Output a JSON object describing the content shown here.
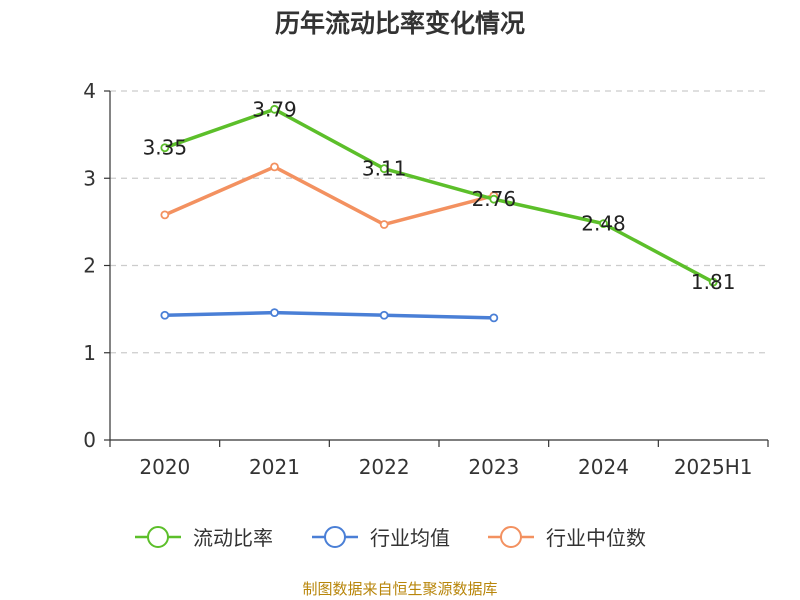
{
  "title": "历年流动比率变化情况",
  "footer": "制图数据来自恒生聚源数据库",
  "chart_data": {
    "type": "line",
    "title": "历年流动比率变化情况",
    "categories": [
      "2020",
      "2021",
      "2022",
      "2023",
      "2024",
      "2025H1"
    ],
    "ylim": [
      0,
      4
    ],
    "yticks": [
      0,
      1,
      2,
      3,
      4
    ],
    "grid": true,
    "legend_position": "bottom",
    "series": [
      {
        "name": "流动比率",
        "color": "#5cbf2a",
        "values": [
          3.35,
          3.79,
          3.11,
          2.76,
          2.48,
          1.81
        ],
        "labels": [
          "3.35",
          "3.79",
          "3.11",
          "2.76",
          "2.48",
          "1.81"
        ]
      },
      {
        "name": "行业均值",
        "color": "#4a7fd6",
        "values": [
          1.43,
          1.46,
          1.43,
          1.4,
          null,
          null
        ]
      },
      {
        "name": "行业中位数",
        "color": "#f39160",
        "values": [
          2.58,
          3.13,
          2.47,
          2.8,
          null,
          null
        ]
      }
    ]
  }
}
